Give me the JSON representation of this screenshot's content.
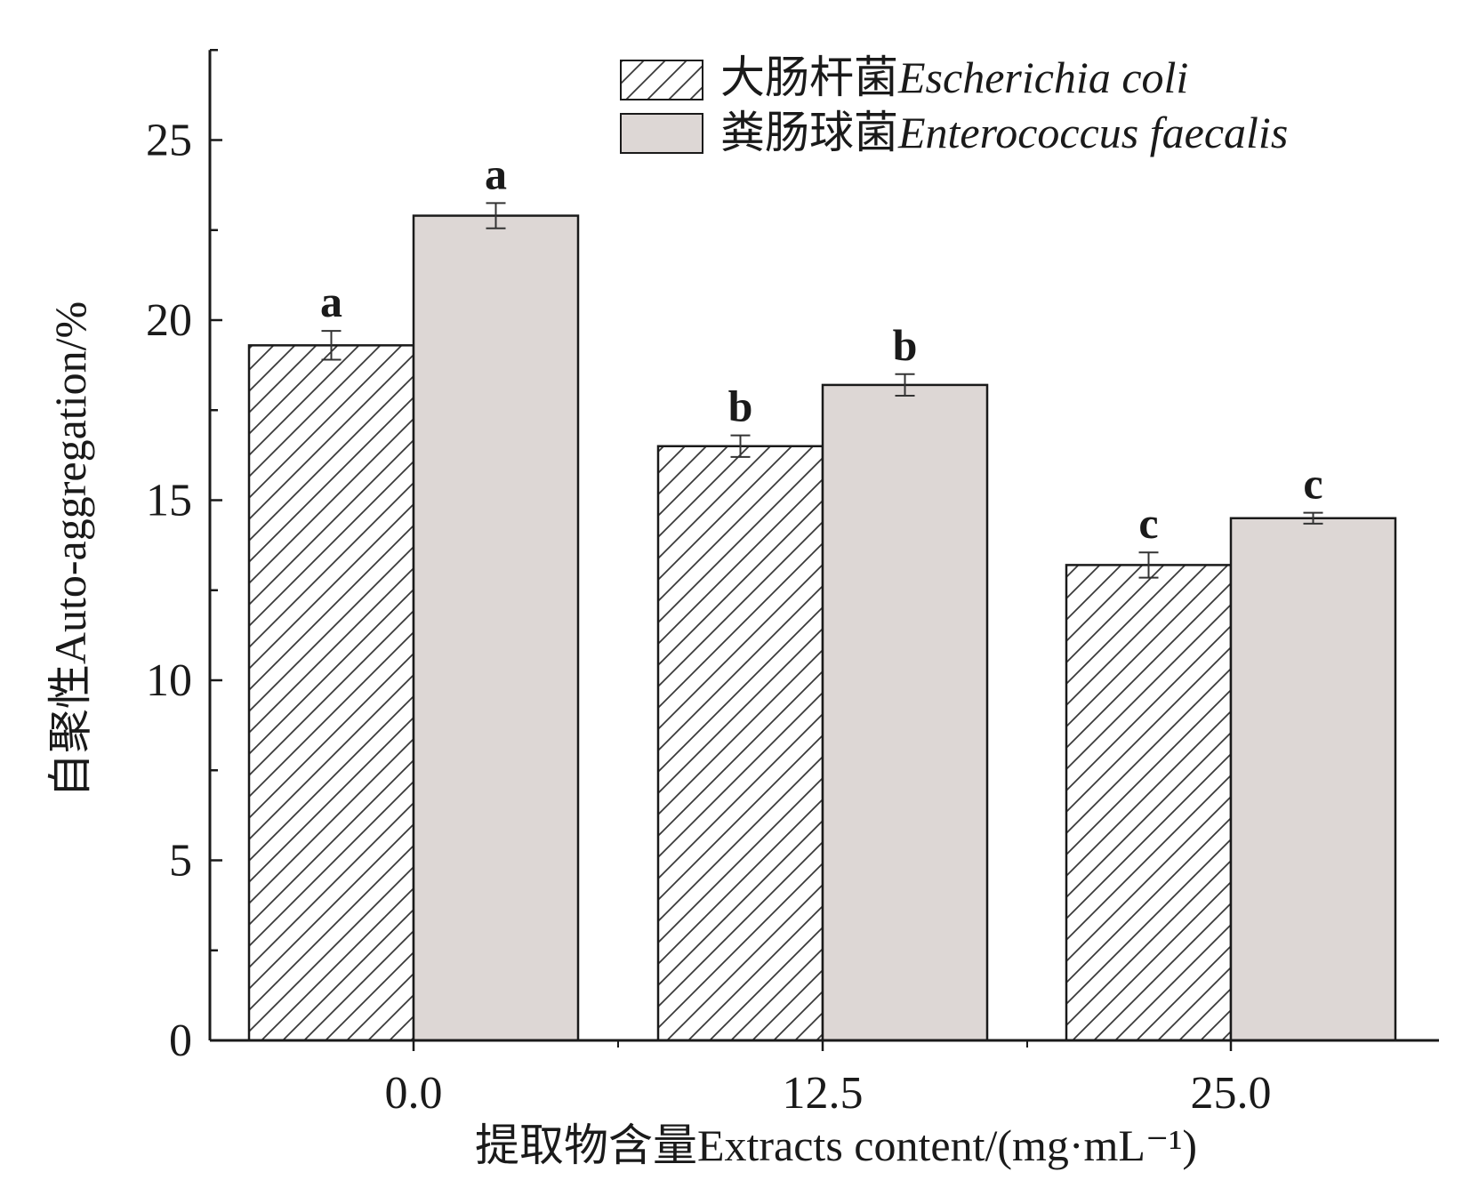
{
  "chart_data": {
    "type": "bar",
    "xlabel": "提取物含量Extracts content/(mg·mL⁻¹)",
    "ylabel": "自聚性Auto-aggregation/%",
    "categories": [
      "0.0",
      "12.5",
      "25.0"
    ],
    "ylim": [
      0,
      27.5
    ],
    "yticks": [
      0,
      5,
      10,
      15,
      20,
      25
    ],
    "grid": false,
    "legend_position": "top-right",
    "series": [
      {
        "name_cn": "大肠杆菌",
        "name_latin": "Escherichia coli",
        "pattern": "hatched",
        "color": "#ffffff",
        "values": [
          19.3,
          16.5,
          13.2
        ],
        "errors": [
          0.4,
          0.3,
          0.35
        ],
        "labels": [
          "a",
          "b",
          "c"
        ]
      },
      {
        "name_cn": "粪肠球菌",
        "name_latin": "Enterococcus faecalis",
        "pattern": "solid",
        "color": "#ddd7d5",
        "values": [
          22.9,
          18.2,
          14.5
        ],
        "errors": [
          0.35,
          0.3,
          0.15
        ],
        "labels": [
          "a",
          "b",
          "c"
        ]
      }
    ]
  }
}
